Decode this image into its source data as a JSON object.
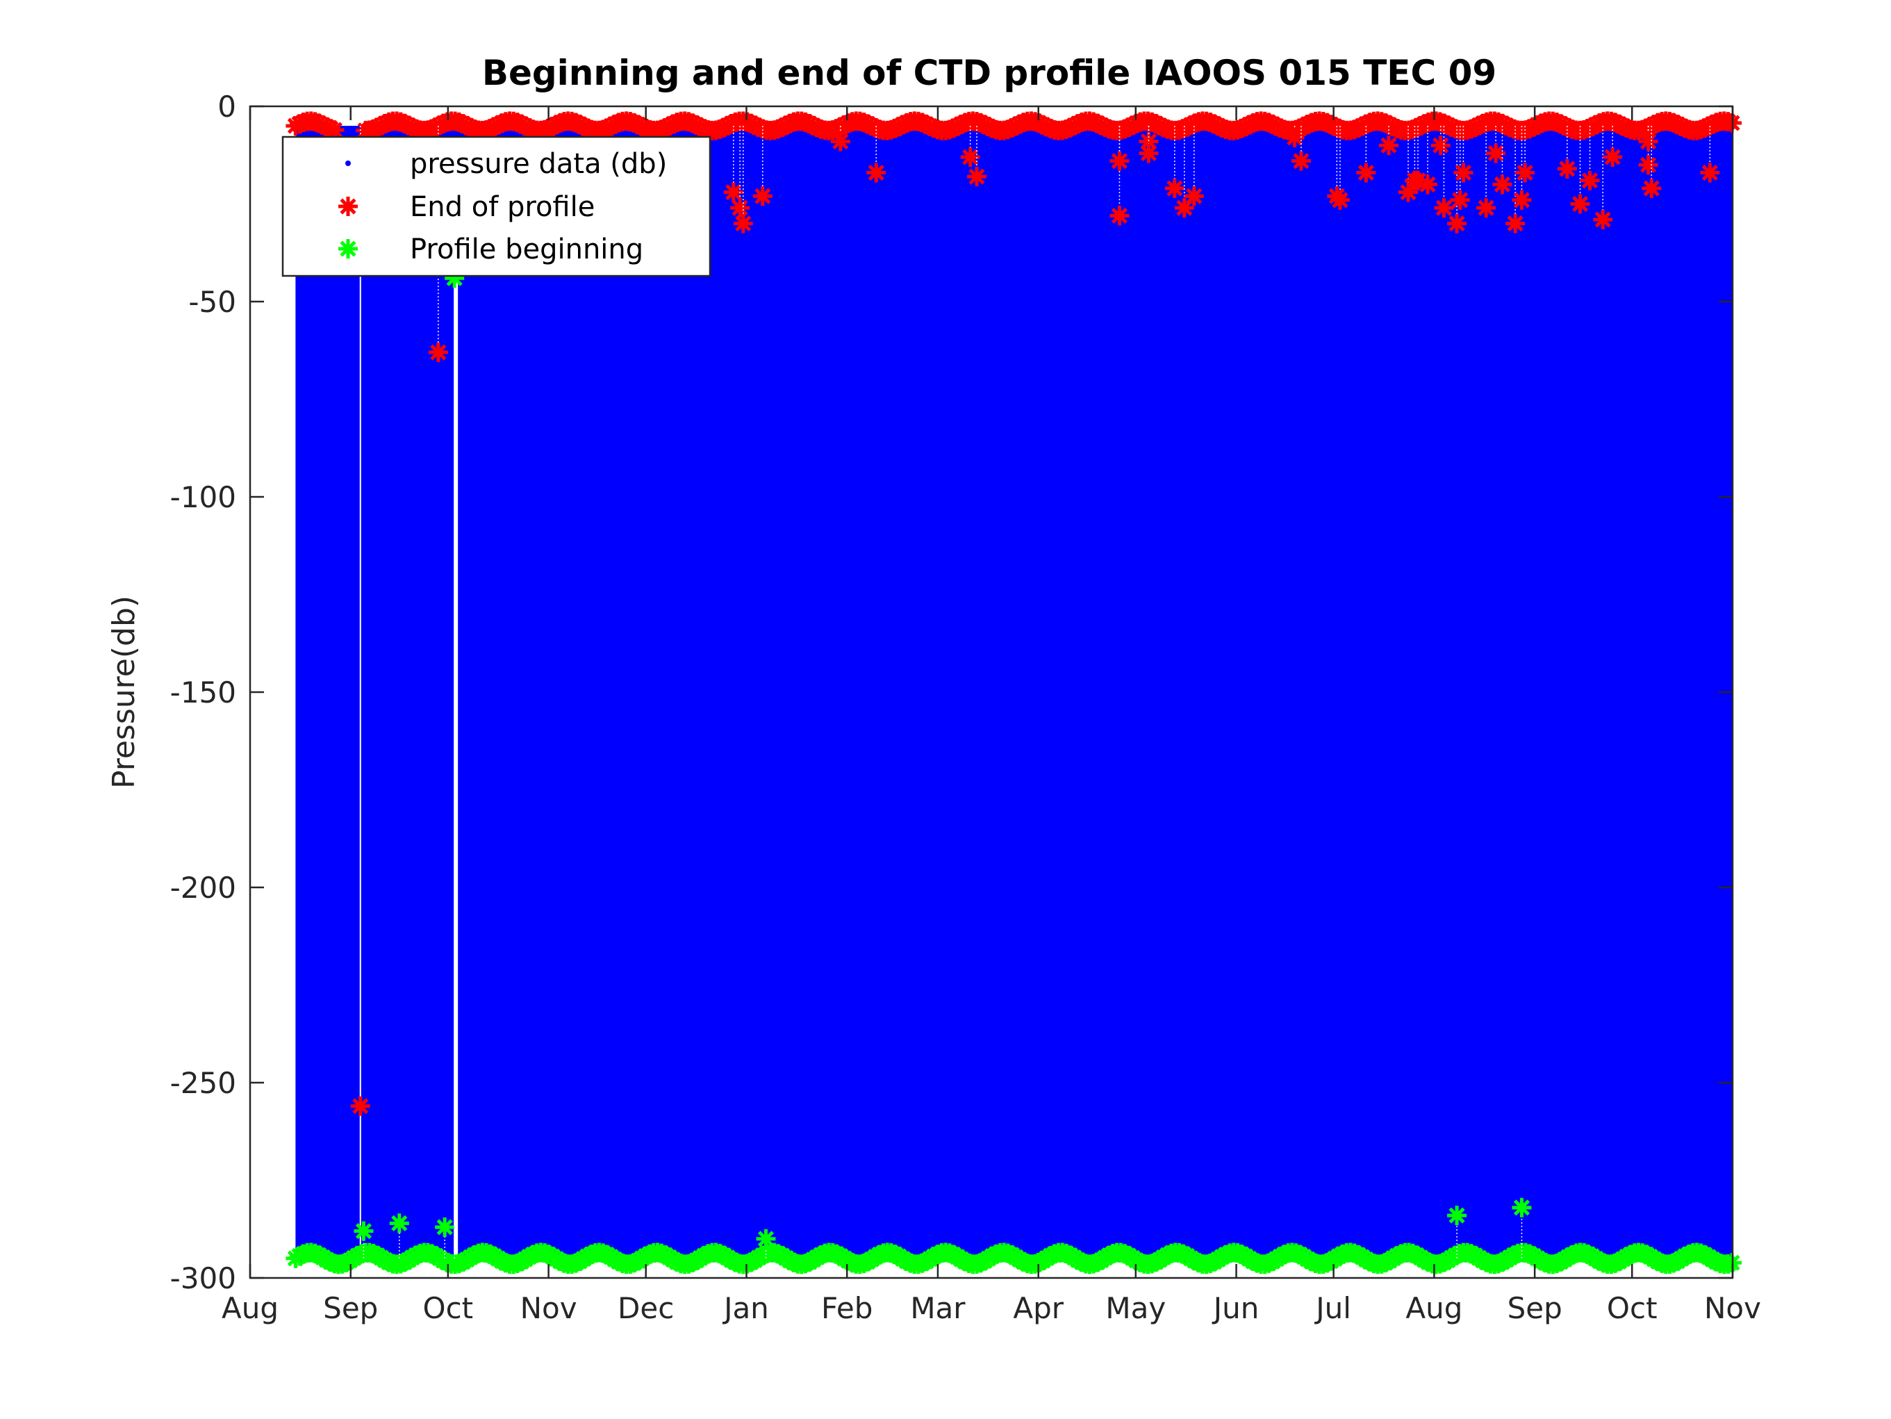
{
  "chart_data": {
    "type": "scatter",
    "title": "Beginning and end of CTD profile IAOOS 015 TEC 09",
    "xlabel": "",
    "ylabel": "Pressure(db)",
    "ylim": [
      -300,
      0
    ],
    "yticks": [
      "0",
      "-50",
      "-100",
      "-150",
      "-200",
      "-250",
      "-300"
    ],
    "ytick_values": [
      0,
      -50,
      -100,
      -150,
      -200,
      -250,
      -300
    ],
    "xlim": [
      "Y1-08-01",
      "Y2-11-01"
    ],
    "xticks": [
      "Aug",
      "Sep",
      "Oct",
      "Nov",
      "Dec",
      "Jan",
      "Feb",
      "Mar",
      "Apr",
      "May",
      "Jun",
      "Jul",
      "Aug",
      "Sep",
      "Oct",
      "Nov"
    ],
    "grid": false,
    "legend_placement": "top-left",
    "legend": [
      "pressure data (db)",
      "End of profile",
      "Profile beginning"
    ],
    "colors": {
      "pressure": "#0000ff",
      "end": "#ff0000",
      "beginning": "#00ff00",
      "axis": "#262626"
    },
    "pressure_data": {
      "name": "pressure data (db)",
      "x_range": [
        "Y1-08-15",
        "Y2-11-01"
      ],
      "y_range": [
        -5,
        -296
      ],
      "gaps": [
        "Y1-09-04",
        "Y1-10-03"
      ]
    },
    "end_of_profile": {
      "name": "End of profile",
      "typical_pressure": -5,
      "x_range": [
        "Y1-08-15",
        "Y2-11-01"
      ],
      "outliers": [
        [
          "Y1-09-04",
          -256
        ],
        [
          "Y1-09-28",
          -63
        ],
        [
          "Y1-12-28",
          -22
        ],
        [
          "Y1-12-30",
          -26
        ],
        [
          "Y1-12-31",
          -30
        ],
        [
          "Y2-01-06",
          -23
        ],
        [
          "Y2-01-30",
          -9
        ],
        [
          "Y2-02-10",
          -17
        ],
        [
          "Y2-03-11",
          -13
        ],
        [
          "Y2-03-13",
          -18
        ],
        [
          "Y2-04-26",
          -28
        ],
        [
          "Y2-04-26",
          -14
        ],
        [
          "Y2-05-05",
          -9
        ],
        [
          "Y2-05-05",
          -12
        ],
        [
          "Y2-05-13",
          -21
        ],
        [
          "Y2-05-16",
          -26
        ],
        [
          "Y2-05-19",
          -23
        ],
        [
          "Y2-06-19",
          -8
        ],
        [
          "Y2-06-21",
          -14
        ],
        [
          "Y2-07-02",
          -23
        ],
        [
          "Y2-07-03",
          -24
        ],
        [
          "Y2-07-11",
          -17
        ],
        [
          "Y2-07-18",
          -10
        ],
        [
          "Y2-07-24",
          -22
        ],
        [
          "Y2-07-26",
          -19
        ],
        [
          "Y2-07-27",
          -19
        ],
        [
          "Y2-07-30",
          -20
        ],
        [
          "Y2-08-03",
          -10
        ],
        [
          "Y2-08-04",
          -26
        ],
        [
          "Y2-08-08",
          -30
        ],
        [
          "Y2-08-09",
          -24
        ],
        [
          "Y2-08-10",
          -17
        ],
        [
          "Y2-08-17",
          -26
        ],
        [
          "Y2-08-20",
          -12
        ],
        [
          "Y2-08-22",
          -20
        ],
        [
          "Y2-08-26",
          -30
        ],
        [
          "Y2-08-28",
          -24
        ],
        [
          "Y2-08-29",
          -17
        ],
        [
          "Y2-09-11",
          -16
        ],
        [
          "Y2-09-15",
          -25
        ],
        [
          "Y2-09-18",
          -19
        ],
        [
          "Y2-09-22",
          -29
        ],
        [
          "Y2-09-25",
          -13
        ],
        [
          "Y2-10-06",
          -15
        ],
        [
          "Y2-10-06",
          -9
        ],
        [
          "Y2-10-07",
          -21
        ],
        [
          "Y2-10-25",
          -17
        ]
      ]
    },
    "profile_beginning": {
      "name": "Profile beginning",
      "typical_pressure": -295,
      "x_range": [
        "Y1-08-15",
        "Y2-11-01"
      ],
      "outliers": [
        [
          "Y1-09-05",
          -288
        ],
        [
          "Y1-09-16",
          -286
        ],
        [
          "Y1-09-30",
          -287
        ],
        [
          "Y1-10-03",
          -44
        ],
        [
          "Y2-01-07",
          -290
        ],
        [
          "Y2-08-08",
          -284
        ],
        [
          "Y2-08-28",
          -282
        ]
      ]
    }
  }
}
